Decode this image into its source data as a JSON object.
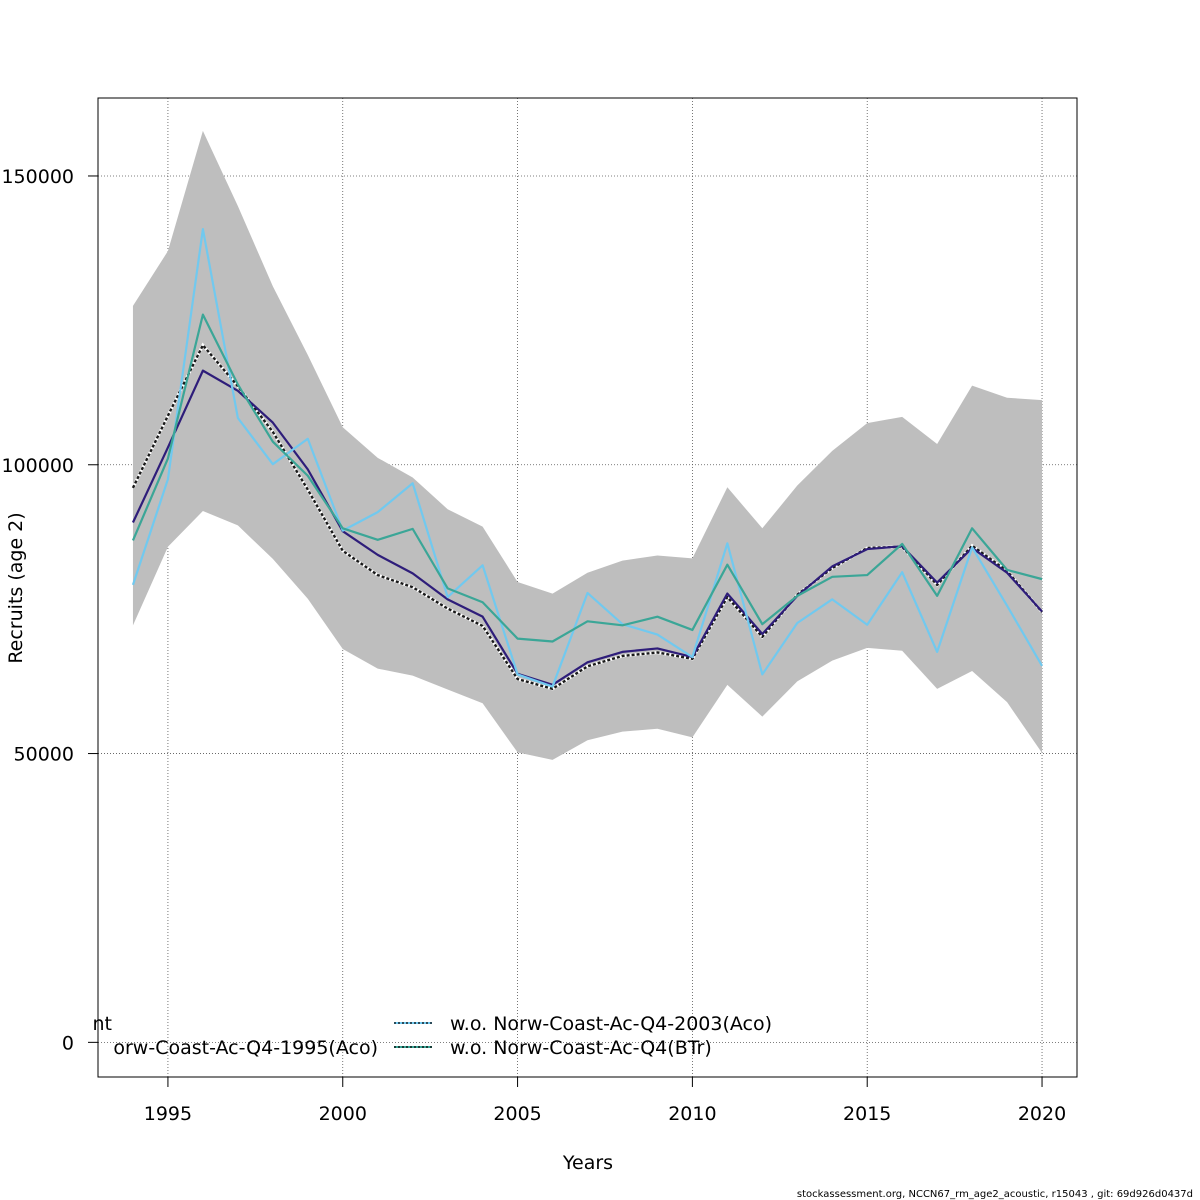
{
  "chart_data": {
    "type": "line",
    "title": "",
    "xlabel": "Years",
    "ylabel": "Recruits (age 2)",
    "xlim": [
      1993,
      2021
    ],
    "ylim": [
      -6000,
      163500
    ],
    "x_ticks": [
      1995,
      2000,
      2005,
      2010,
      2015,
      2020
    ],
    "y_ticks": [
      0,
      50000,
      100000,
      150000
    ],
    "grid": true,
    "x": [
      1994,
      1995,
      1996,
      1997,
      1998,
      1999,
      2000,
      2001,
      2002,
      2003,
      2004,
      2005,
      2006,
      2007,
      2008,
      2009,
      2010,
      2011,
      2012,
      2013,
      2014,
      2015,
      2016,
      2017,
      2018,
      2019,
      2020
    ],
    "band": {
      "upper": [
        127500,
        137000,
        157800,
        144800,
        130900,
        119000,
        106500,
        101200,
        97800,
        92300,
        89300,
        79700,
        77700,
        81300,
        83400,
        84300,
        83800,
        96100,
        89000,
        96400,
        102400,
        107200,
        108300,
        103600,
        113700,
        111600,
        111200
      ],
      "lower": [
        72200,
        85800,
        92000,
        89500,
        83700,
        76800,
        68100,
        64700,
        63500,
        61100,
        58700,
        50200,
        48900,
        52300,
        53800,
        54300,
        52800,
        61900,
        56400,
        62500,
        66100,
        68300,
        67800,
        61200,
        64300,
        58900,
        50100
      ],
      "color": "#bebebe"
    },
    "series": [
      {
        "values": [
          96000,
          108500,
          120700,
          113600,
          105700,
          95700,
          85100,
          80900,
          78800,
          75100,
          72100,
          62900,
          61200,
          65100,
          66900,
          67500,
          66400,
          77100,
          70200,
          77500,
          82100,
          85600,
          85800,
          79200,
          86000,
          81600,
          74500
        ],
        "color": "#1a1a1a",
        "dash": "3,2",
        "width": 2.4
      },
      {
        "values": [
          90000,
          103000,
          116300,
          112800,
          107300,
          99200,
          88500,
          84400,
          81200,
          76700,
          73700,
          63800,
          61900,
          65800,
          67600,
          68200,
          66700,
          77700,
          70700,
          77300,
          82400,
          85400,
          85900,
          79600,
          85600,
          81300,
          74600
        ],
        "color": "#2e1d7a",
        "dash": "",
        "width": 2.2
      },
      {
        "values": [
          79200,
          97500,
          140800,
          108100,
          100100,
          104500,
          88600,
          91800,
          96800,
          77100,
          82600,
          63700,
          61600,
          77800,
          72400,
          70600,
          66700,
          86400,
          63700,
          72600,
          76700,
          72300,
          81400,
          67600,
          85700,
          75600,
          65200
        ],
        "color": "#71c9ef",
        "dash": "",
        "width": 2.2
      },
      {
        "values": [
          86900,
          101100,
          126000,
          113900,
          104000,
          98100,
          89000,
          87000,
          88900,
          78600,
          76200,
          69900,
          69400,
          72900,
          72200,
          73700,
          71400,
          82700,
          72400,
          77300,
          80600,
          80900,
          86300,
          77300,
          89000,
          81800,
          80200
        ],
        "color": "#3ba697",
        "dash": "",
        "width": 2.2
      }
    ],
    "legend": {
      "placement": "bottom-left",
      "entries": [
        {
          "label": "nt",
          "color": "#1a1a1a"
        },
        {
          "label": "orw-Coast-Ac-Q4-1995(Aco)",
          "color": "#2e1d7a"
        },
        {
          "label": "w.o. Norw-Coast-Ac-Q4-2003(Aco)",
          "color": "#71c9ef"
        },
        {
          "label": "w.o. Norw-Coast-Ac-Q4(BTr)",
          "color": "#3ba697"
        }
      ]
    }
  },
  "footer_text": "stockassessment.org, NCCN67_rm_age2_acoustic, r15043 , git: 69d926d0437d"
}
